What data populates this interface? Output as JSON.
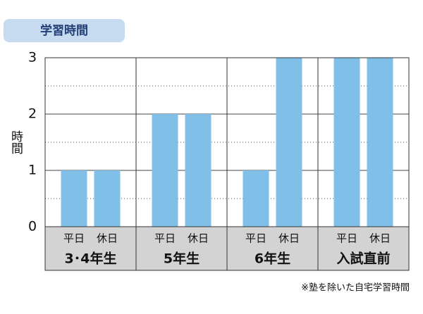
{
  "chart_data": {
    "type": "bar",
    "title": "学習時間",
    "y_label": "時間",
    "footnote": "※塾を除いた自宅学習時間",
    "categories": [
      "3･4年生",
      "5年生",
      "6年生",
      "入試直前"
    ],
    "series": [
      {
        "name": "平日",
        "color": "#80bfe8",
        "values": [
          1,
          2,
          1,
          3
        ]
      },
      {
        "name": "休日",
        "color": "#80bfe8",
        "values": [
          1,
          2,
          3,
          3
        ]
      }
    ],
    "ylim": [
      0,
      3
    ],
    "yticks": [
      0,
      1,
      2,
      3
    ],
    "minor_yticks": [
      0.5,
      1.5,
      2.5
    ],
    "grid": true
  }
}
